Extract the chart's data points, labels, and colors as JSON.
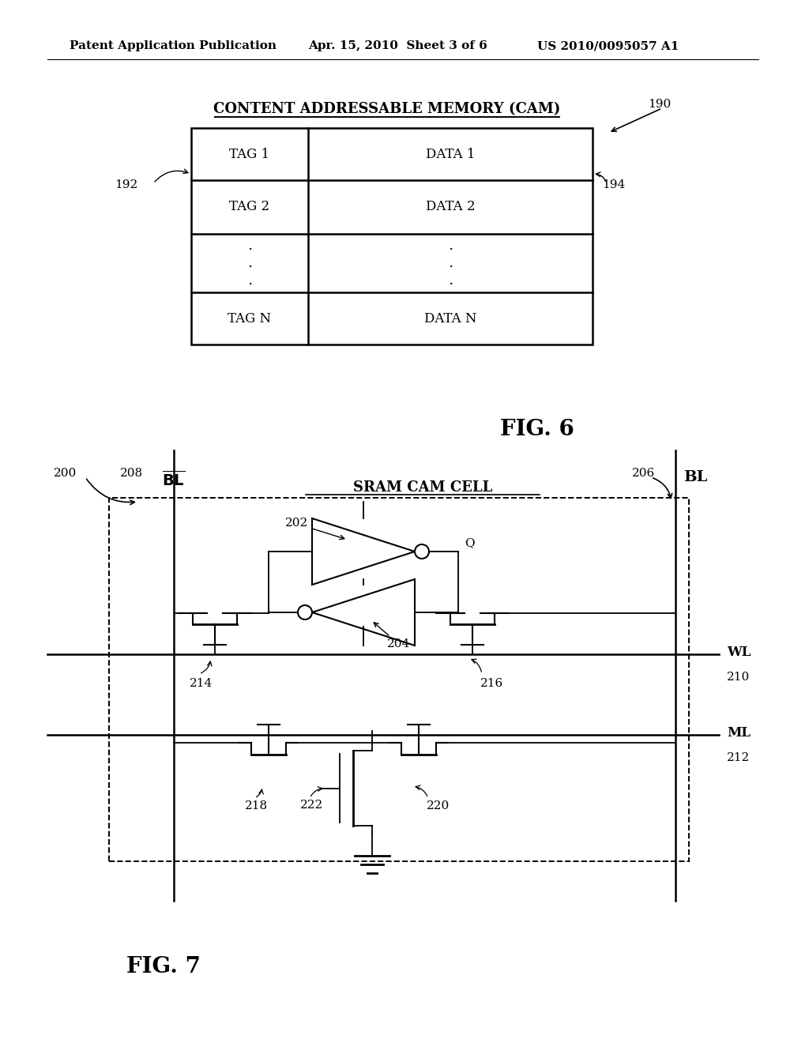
{
  "bg_color": "#ffffff",
  "header_left": "Patent Application Publication",
  "header_mid": "Apr. 15, 2010  Sheet 3 of 6",
  "header_right": "US 2010/0095057 A1",
  "fig6_title": "CONTENT ADDRESSABLE MEMORY (CAM)",
  "fig6_label": "FIG. 6",
  "fig7_label": "FIG. 7",
  "ref_190": "190",
  "ref_192": "192",
  "ref_194": "194",
  "ref_200": "200",
  "ref_202": "202",
  "ref_204": "204",
  "ref_206": "206",
  "ref_208": "208",
  "ref_210": "210",
  "ref_212": "212",
  "ref_214": "214",
  "ref_216": "216",
  "ref_218": "218",
  "ref_220": "220",
  "ref_222": "222",
  "sram_label": "SRAM CAM CELL",
  "Q": "Q",
  "WL": "WL",
  "ML": "ML",
  "BL": "BL"
}
